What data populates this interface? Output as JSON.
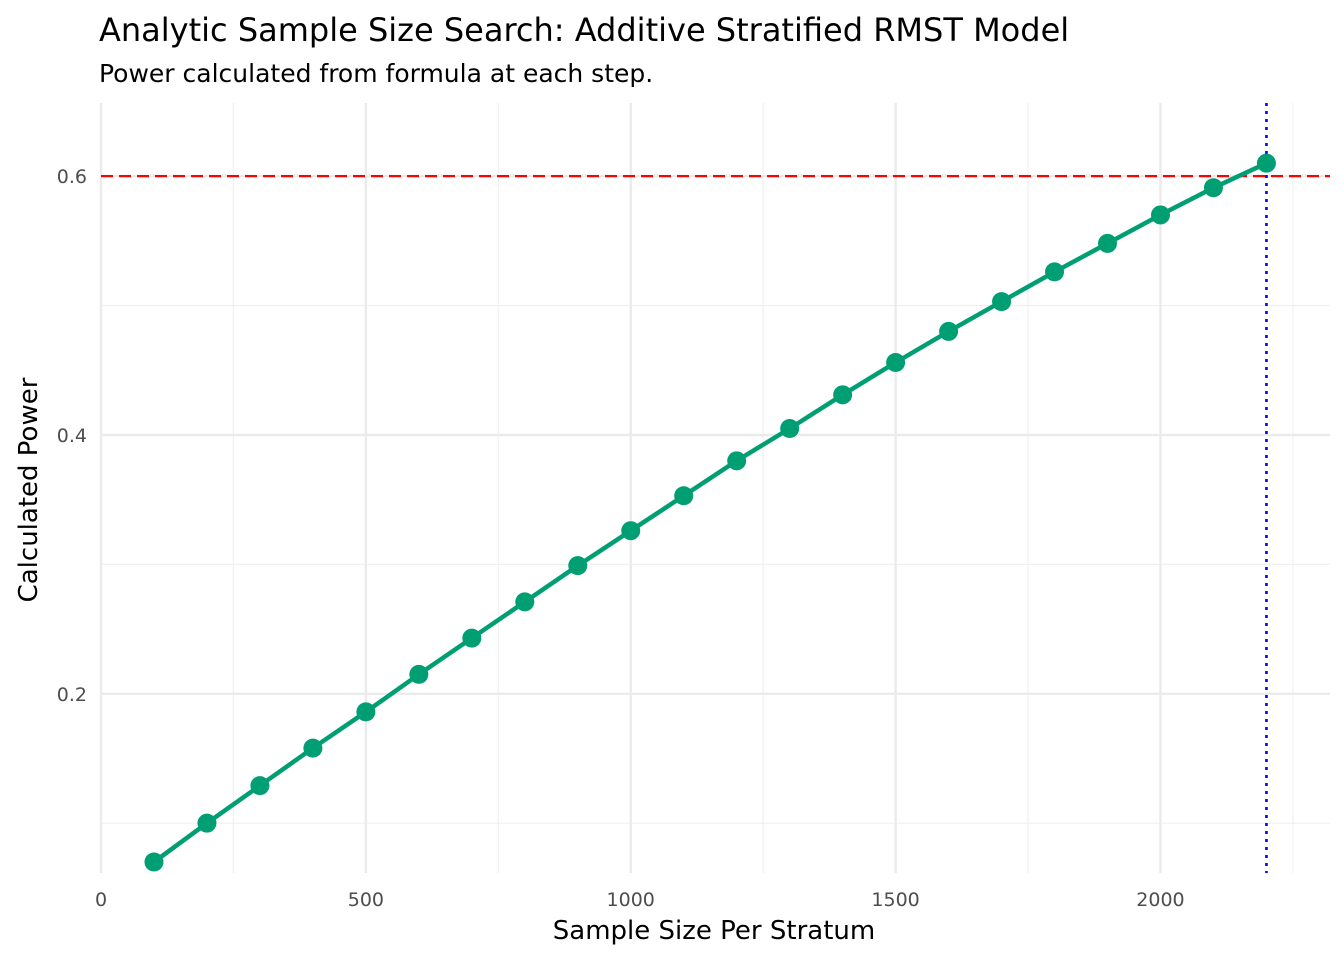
{
  "chart_data": {
    "type": "line",
    "title": "Analytic Sample Size Search: Additive Stratified RMST Model",
    "subtitle": "Power calculated from formula at each step.",
    "xlabel": "Sample Size Per Stratum",
    "ylabel": "Calculated Power",
    "xlim": [
      0,
      2320
    ],
    "ylim": [
      0.0615,
      0.6565
    ],
    "x_ticks": [
      0,
      500,
      1000,
      1500,
      2000
    ],
    "x_tick_labels": [
      "0",
      "500",
      "1000",
      "1500",
      "2000"
    ],
    "x_minor_ticks": [
      250,
      750,
      1250,
      1750,
      2250
    ],
    "y_ticks": [
      0.2,
      0.4,
      0.6
    ],
    "y_tick_labels": [
      "0.2",
      "0.4",
      "0.6"
    ],
    "y_minor_ticks": [
      0.1,
      0.3,
      0.5
    ],
    "grid": true,
    "legend": "none",
    "series": [
      {
        "x": [
          100,
          200,
          300,
          400,
          500,
          600,
          700,
          800,
          900,
          1000,
          1100,
          1200,
          1300,
          1400,
          1500,
          1600,
          1700,
          1800,
          1900,
          2000,
          2100,
          2200
        ],
        "y": [
          0.07,
          0.1,
          0.129,
          0.158,
          0.186,
          0.215,
          0.243,
          0.271,
          0.299,
          0.326,
          0.353,
          0.38,
          0.405,
          0.431,
          0.456,
          0.48,
          0.503,
          0.526,
          0.548,
          0.57,
          0.591,
          0.61
        ],
        "color": "#009E73"
      }
    ],
    "reference_lines": [
      {
        "orientation": "horizontal",
        "value": 0.6,
        "color": "#FF0000",
        "style": "dashed"
      },
      {
        "orientation": "vertical",
        "value": 2200,
        "color": "#0000FF",
        "style": "dotted"
      }
    ]
  }
}
